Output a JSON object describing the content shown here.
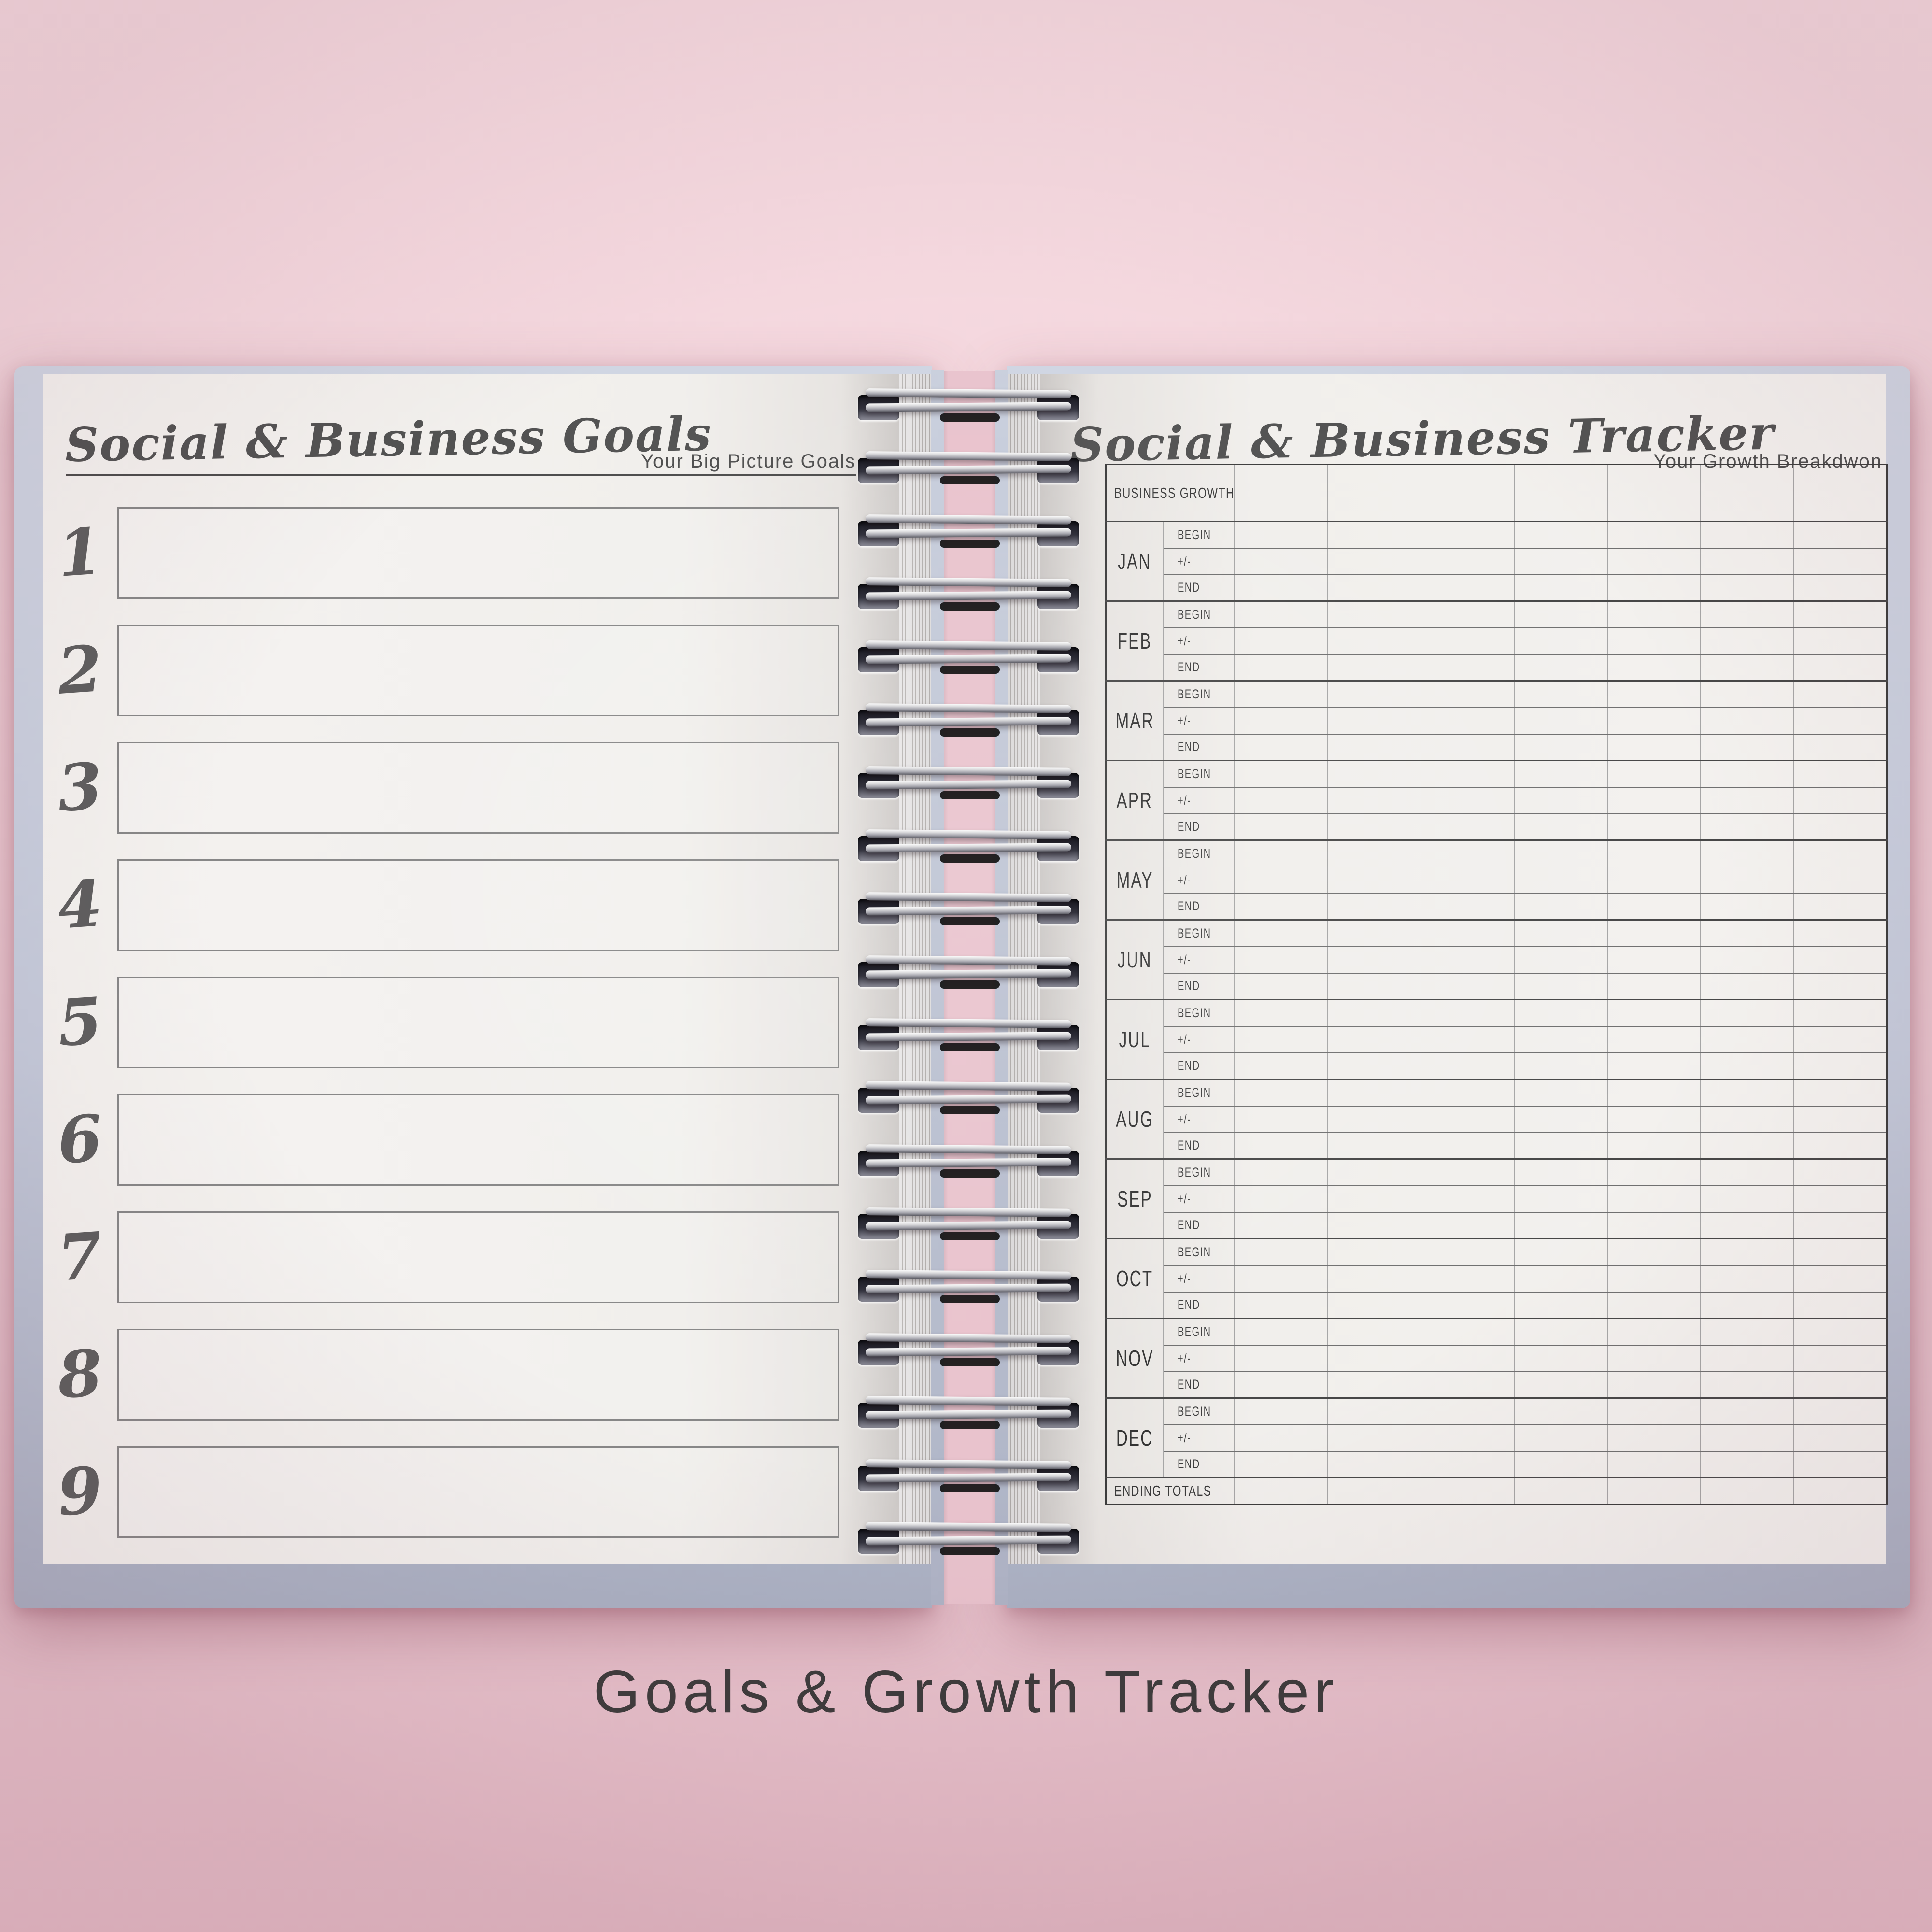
{
  "caption": "Goals & Growth Tracker",
  "left_page": {
    "title": "Social & Business Goals",
    "subtitle": "Your Big Picture Goals",
    "goal_numbers": [
      "1",
      "2",
      "3",
      "4",
      "5",
      "6",
      "7",
      "8",
      "9"
    ]
  },
  "right_page": {
    "title": "Social & Business Tracker",
    "subtitle": "Your Growth Breakdwon",
    "table": {
      "header_label": "BUSINESS GROWTH",
      "months": [
        "JAN",
        "FEB",
        "MAR",
        "APR",
        "MAY",
        "JUN",
        "JUL",
        "AUG",
        "SEP",
        "OCT",
        "NOV",
        "DEC"
      ],
      "row_labels": [
        "BEGIN",
        "+/-",
        "END"
      ],
      "data_columns": 7,
      "footer_label": "ENDING TOTALS"
    }
  },
  "colors": {
    "background_pink": "#f3d5dc",
    "cover_blue": "#c4cada",
    "paper_white": "#f1efec",
    "ink_dark": "#4a4a4a",
    "table_line": "#707070",
    "wire_silver": "#c9c9c9",
    "caption_ink": "#3b3b3b"
  }
}
